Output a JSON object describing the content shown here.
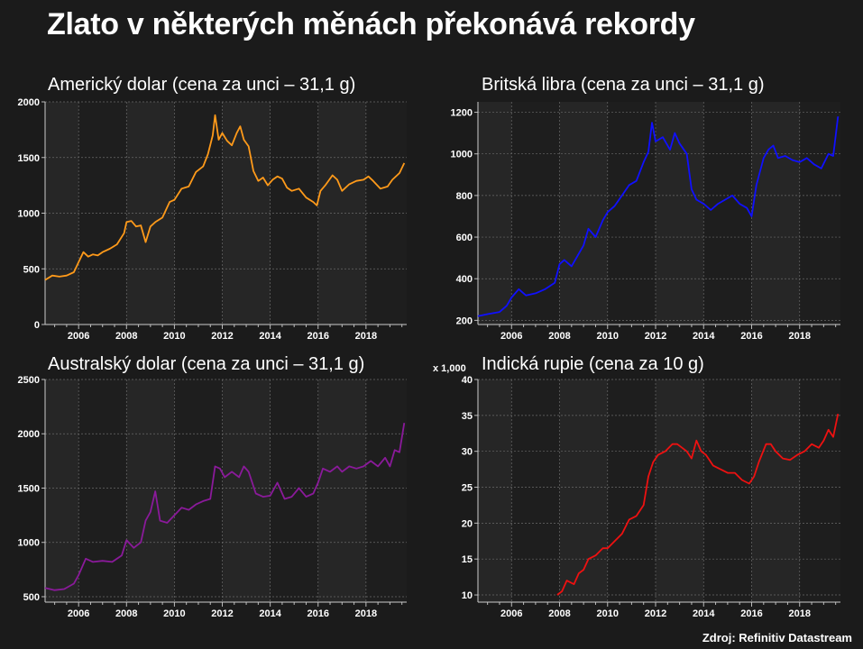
{
  "main_title": "Zlato v některých měnách překonává rekordy",
  "source": "Zdroj: Refinitiv Datastream",
  "chart_data": [
    {
      "type": "line",
      "title": "Americký dolar (cena za unci – 31,1 g)",
      "color": "#ff9a1a",
      "xlim": [
        2004.6,
        2019.7
      ],
      "ylim": [
        0,
        2000
      ],
      "yticks": [
        0,
        500,
        1000,
        1500,
        2000
      ],
      "ytick_labels": [
        "0",
        "500",
        "1000",
        "1500",
        "2000"
      ],
      "xticks": [
        2006,
        2008,
        2010,
        2012,
        2014,
        2016,
        2018
      ],
      "multiplier_label": "",
      "series": [
        {
          "x": [
            2004.6,
            2004.9,
            2005.2,
            2005.5,
            2005.8,
            2006.0,
            2006.2,
            2006.4,
            2006.6,
            2006.8,
            2007.0,
            2007.3,
            2007.6,
            2007.9,
            2008.0,
            2008.2,
            2008.4,
            2008.6,
            2008.8,
            2009.0,
            2009.2,
            2009.5,
            2009.8,
            2010.0,
            2010.3,
            2010.6,
            2010.9,
            2011.2,
            2011.4,
            2011.6,
            2011.7,
            2011.85,
            2012.0,
            2012.2,
            2012.4,
            2012.6,
            2012.75,
            2012.9,
            2013.1,
            2013.3,
            2013.5,
            2013.7,
            2013.9,
            2014.1,
            2014.3,
            2014.5,
            2014.7,
            2014.9,
            2015.2,
            2015.5,
            2015.8,
            2015.95,
            2016.1,
            2016.3,
            2016.6,
            2016.8,
            2017.0,
            2017.3,
            2017.6,
            2017.9,
            2018.1,
            2018.3,
            2018.6,
            2018.9,
            2019.1,
            2019.4,
            2019.6
          ],
          "y": [
            400,
            440,
            430,
            440,
            470,
            560,
            650,
            610,
            630,
            620,
            650,
            680,
            720,
            820,
            920,
            930,
            880,
            890,
            740,
            880,
            920,
            960,
            1100,
            1120,
            1220,
            1240,
            1370,
            1420,
            1530,
            1700,
            1880,
            1660,
            1720,
            1650,
            1610,
            1720,
            1780,
            1660,
            1600,
            1380,
            1290,
            1320,
            1250,
            1300,
            1330,
            1310,
            1230,
            1200,
            1220,
            1140,
            1100,
            1070,
            1200,
            1250,
            1340,
            1300,
            1200,
            1260,
            1290,
            1300,
            1330,
            1290,
            1220,
            1240,
            1300,
            1360,
            1450
          ]
        }
      ]
    },
    {
      "type": "line",
      "title": "Britská libra (cena za unci – 31,1 g)",
      "color": "#1010ff",
      "xlim": [
        2004.6,
        2019.7
      ],
      "ylim": [
        180,
        1250
      ],
      "yticks": [
        200,
        400,
        600,
        800,
        1000,
        1200
      ],
      "ytick_labels": [
        "200",
        "400",
        "600",
        "800",
        "1000",
        "1200"
      ],
      "xticks": [
        2006,
        2008,
        2010,
        2012,
        2014,
        2016,
        2018
      ],
      "multiplier_label": "",
      "series": [
        {
          "x": [
            2004.6,
            2005.0,
            2005.5,
            2005.8,
            2006.0,
            2006.3,
            2006.6,
            2007.0,
            2007.4,
            2007.8,
            2008.0,
            2008.2,
            2008.5,
            2008.8,
            2009.0,
            2009.2,
            2009.5,
            2009.8,
            2010.0,
            2010.3,
            2010.6,
            2010.9,
            2011.2,
            2011.5,
            2011.7,
            2011.85,
            2012.0,
            2012.3,
            2012.6,
            2012.8,
            2013.0,
            2013.3,
            2013.5,
            2013.7,
            2014.0,
            2014.3,
            2014.6,
            2014.9,
            2015.2,
            2015.5,
            2015.8,
            2016.0,
            2016.2,
            2016.5,
            2016.7,
            2016.9,
            2017.1,
            2017.4,
            2017.7,
            2018.0,
            2018.3,
            2018.6,
            2018.9,
            2019.2,
            2019.4,
            2019.6
          ],
          "y": [
            220,
            230,
            240,
            270,
            310,
            350,
            320,
            330,
            350,
            380,
            470,
            490,
            460,
            520,
            560,
            640,
            600,
            680,
            720,
            750,
            800,
            850,
            870,
            960,
            1010,
            1150,
            1060,
            1080,
            1020,
            1100,
            1050,
            1000,
            830,
            780,
            760,
            730,
            760,
            780,
            800,
            760,
            740,
            700,
            850,
            980,
            1020,
            1040,
            980,
            990,
            970,
            960,
            980,
            950,
            930,
            1000,
            990,
            1180
          ]
        }
      ]
    },
    {
      "type": "line",
      "title": "Australský dolar (cena za unci – 31,1 g)",
      "color": "#8a1a9a",
      "xlim": [
        2004.6,
        2019.7
      ],
      "ylim": [
        450,
        2500
      ],
      "yticks": [
        500,
        1000,
        1500,
        2000,
        2500
      ],
      "ytick_labels": [
        "500",
        "1000",
        "1500",
        "2000",
        "2500"
      ],
      "xticks": [
        2006,
        2008,
        2010,
        2012,
        2014,
        2016,
        2018
      ],
      "multiplier_label": "",
      "series": [
        {
          "x": [
            2004.6,
            2005.0,
            2005.4,
            2005.8,
            2006.0,
            2006.3,
            2006.6,
            2007.0,
            2007.4,
            2007.8,
            2008.0,
            2008.3,
            2008.6,
            2008.8,
            2009.0,
            2009.2,
            2009.4,
            2009.7,
            2010.0,
            2010.3,
            2010.6,
            2010.9,
            2011.2,
            2011.5,
            2011.7,
            2011.9,
            2012.1,
            2012.4,
            2012.7,
            2012.9,
            2013.1,
            2013.4,
            2013.7,
            2014.0,
            2014.3,
            2014.6,
            2014.9,
            2015.2,
            2015.5,
            2015.8,
            2016.0,
            2016.2,
            2016.5,
            2016.8,
            2017.0,
            2017.3,
            2017.6,
            2017.9,
            2018.2,
            2018.5,
            2018.8,
            2019.0,
            2019.2,
            2019.4,
            2019.6
          ],
          "y": [
            580,
            560,
            570,
            620,
            700,
            850,
            820,
            830,
            820,
            880,
            1020,
            950,
            1000,
            1200,
            1280,
            1470,
            1200,
            1180,
            1250,
            1320,
            1300,
            1350,
            1380,
            1400,
            1700,
            1680,
            1600,
            1650,
            1600,
            1700,
            1650,
            1450,
            1420,
            1430,
            1550,
            1400,
            1420,
            1500,
            1420,
            1450,
            1550,
            1680,
            1650,
            1700,
            1650,
            1700,
            1680,
            1700,
            1750,
            1700,
            1780,
            1700,
            1850,
            1830,
            2100
          ]
        }
      ]
    },
    {
      "type": "line",
      "title": "Indická rupie (cena za 10 g)",
      "color": "#ee1111",
      "xlim": [
        2004.6,
        2019.7
      ],
      "ylim": [
        9,
        40
      ],
      "yticks": [
        10,
        15,
        20,
        25,
        30,
        35,
        40
      ],
      "ytick_labels": [
        "10",
        "15",
        "20",
        "25",
        "30",
        "35",
        "40"
      ],
      "xticks": [
        2006,
        2008,
        2010,
        2012,
        2014,
        2016,
        2018
      ],
      "multiplier_label": "x 1,000",
      "series": [
        {
          "x": [
            2007.9,
            2008.1,
            2008.3,
            2008.6,
            2008.8,
            2009.0,
            2009.2,
            2009.5,
            2009.8,
            2010.0,
            2010.3,
            2010.6,
            2010.9,
            2011.2,
            2011.5,
            2011.7,
            2011.9,
            2012.1,
            2012.4,
            2012.7,
            2012.9,
            2013.1,
            2013.3,
            2013.5,
            2013.7,
            2013.9,
            2014.1,
            2014.4,
            2014.7,
            2015.0,
            2015.3,
            2015.6,
            2015.9,
            2016.1,
            2016.3,
            2016.6,
            2016.8,
            2017.0,
            2017.3,
            2017.6,
            2017.9,
            2018.2,
            2018.5,
            2018.8,
            2019.0,
            2019.2,
            2019.4,
            2019.6
          ],
          "y": [
            10.0,
            10.5,
            12.0,
            11.5,
            13.0,
            13.5,
            15.0,
            15.5,
            16.5,
            16.5,
            17.5,
            18.5,
            20.5,
            21.0,
            22.5,
            26.5,
            28.5,
            29.5,
            30.0,
            31.0,
            31.0,
            30.5,
            30.0,
            29.0,
            31.5,
            30.0,
            29.5,
            28.0,
            27.5,
            27.0,
            27.0,
            26.0,
            25.5,
            26.5,
            28.5,
            31.0,
            31.0,
            30.0,
            29.0,
            28.8,
            29.5,
            30.0,
            31.0,
            30.5,
            31.5,
            33.0,
            32.0,
            35.2
          ]
        }
      ]
    }
  ]
}
